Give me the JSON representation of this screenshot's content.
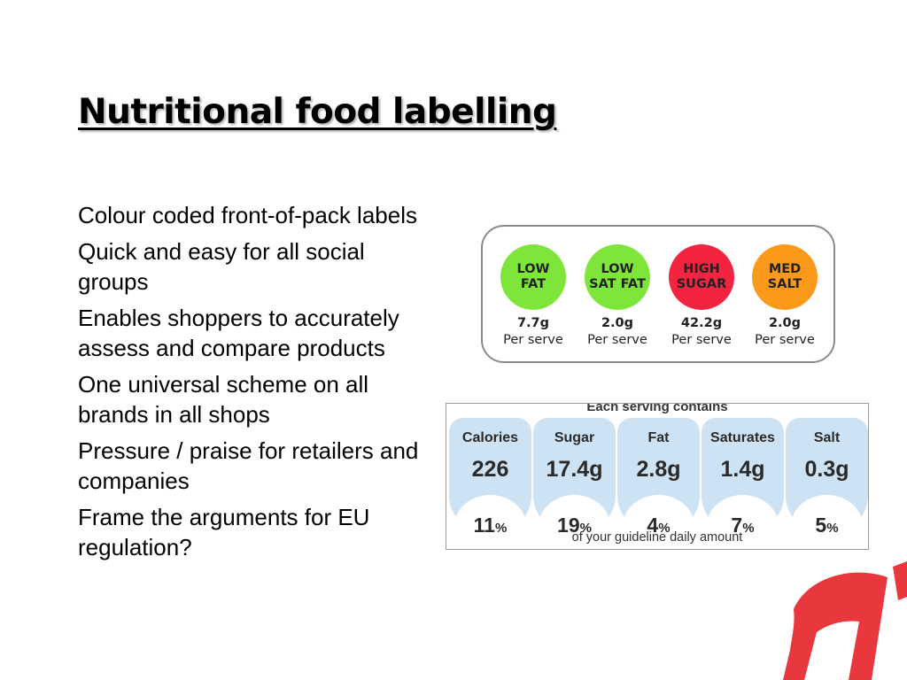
{
  "slide": {
    "title": "Nutritional food labelling",
    "bullets": [
      "Colour coded front-of-pack labels",
      "Quick and easy for all social groups",
      "Enables shoppers to accurately assess and compare products",
      "One universal scheme on all brands in all shops",
      "Pressure / praise for retailers and companies",
      "Frame the arguments for EU regulation?"
    ]
  },
  "traffic_light_label": {
    "items": [
      {
        "line1": "LOW",
        "line2": "FAT",
        "value": "7.7g",
        "unit": "Per serve",
        "color": "#7ee63a"
      },
      {
        "line1": "LOW",
        "line2": "SAT FAT",
        "value": "2.0g",
        "unit": "Per serve",
        "color": "#7ee63a"
      },
      {
        "line1": "HIGH",
        "line2": "SUGAR",
        "value": "42.2g",
        "unit": "Per serve",
        "color": "#f3243f"
      },
      {
        "line1": "MED",
        "line2": "SALT",
        "value": "2.0g",
        "unit": "Per serve",
        "color": "#fb9a1a"
      }
    ]
  },
  "gda_label": {
    "header": "Each serving contains",
    "footer": "of your guideline daily amount",
    "column_color": "#cde3f3",
    "columns": [
      {
        "label": "Calories",
        "amount": "226",
        "percent": "11",
        "percent_sign": "%"
      },
      {
        "label": "Sugar",
        "amount": "17.4g",
        "percent": "19",
        "percent_sign": "%"
      },
      {
        "label": "Fat",
        "amount": "2.8g",
        "percent": "4",
        "percent_sign": "%"
      },
      {
        "label": "Saturates",
        "amount": "1.4g",
        "percent": "7",
        "percent_sign": "%"
      },
      {
        "label": "Salt",
        "amount": "0.3g",
        "percent": "5",
        "percent_sign": "%"
      }
    ]
  },
  "logo": {
    "icon": "red-brand-logo",
    "color": "#e8383d"
  }
}
